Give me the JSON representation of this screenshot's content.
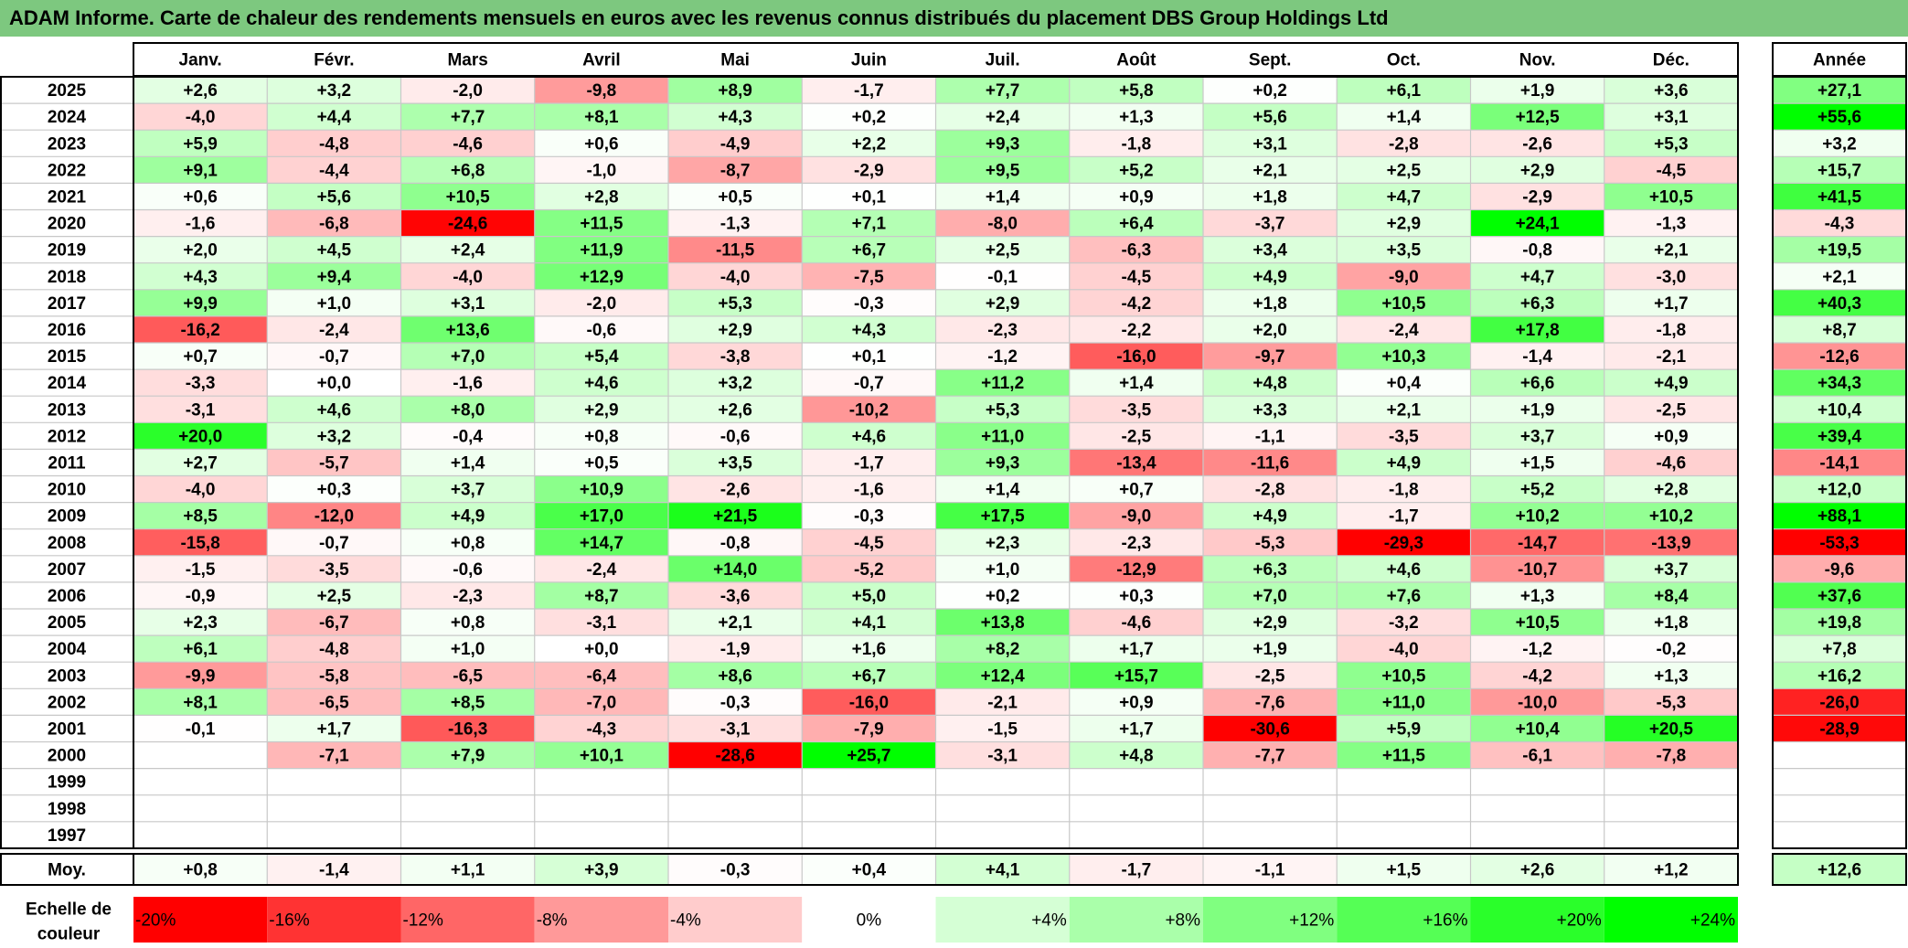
{
  "chart_data": {
    "type": "heatmap",
    "title": "ADAM Informe. Carte de chaleur des rendements mensuels en euros avec les revenus connus distribués du placement DBS Group Holdings Ltd",
    "months": [
      "Janv.",
      "Févr.",
      "Mars",
      "Avril",
      "Mai",
      "Juin",
      "Juil.",
      "Août",
      "Sept.",
      "Oct.",
      "Nov.",
      "Déc."
    ],
    "year_header": "Année",
    "years": [
      "2025",
      "2024",
      "2023",
      "2022",
      "2021",
      "2020",
      "2019",
      "2018",
      "2017",
      "2016",
      "2015",
      "2014",
      "2013",
      "2012",
      "2011",
      "2010",
      "2009",
      "2008",
      "2007",
      "2006",
      "2005",
      "2004",
      "2003",
      "2002",
      "2001",
      "2000",
      "1999",
      "1998",
      "1997"
    ],
    "values": [
      [
        "+2,6",
        "+3,2",
        "-2,0",
        "-9,8",
        "+8,9",
        "-1,7",
        "+7,7",
        "+5,8",
        "+0,2",
        "+6,1",
        "+1,9",
        "+3,6"
      ],
      [
        "-4,0",
        "+4,4",
        "+7,7",
        "+8,1",
        "+4,3",
        "+0,2",
        "+2,4",
        "+1,3",
        "+5,6",
        "+1,4",
        "+12,5",
        "+3,1"
      ],
      [
        "+5,9",
        "-4,8",
        "-4,6",
        "+0,6",
        "-4,9",
        "+2,2",
        "+9,3",
        "-1,8",
        "+3,1",
        "-2,8",
        "-2,6",
        "+5,3"
      ],
      [
        "+9,1",
        "-4,4",
        "+6,8",
        "-1,0",
        "-8,7",
        "-2,9",
        "+9,5",
        "+5,2",
        "+2,1",
        "+2,5",
        "+2,9",
        "-4,5"
      ],
      [
        "+0,6",
        "+5,6",
        "+10,5",
        "+2,8",
        "+0,5",
        "+0,1",
        "+1,4",
        "+0,9",
        "+1,8",
        "+4,7",
        "-2,9",
        "+10,5"
      ],
      [
        "-1,6",
        "-6,8",
        "-24,6",
        "+11,5",
        "-1,3",
        "+7,1",
        "-8,0",
        "+6,4",
        "-3,7",
        "+2,9",
        "+24,1",
        "-1,3"
      ],
      [
        "+2,0",
        "+4,5",
        "+2,4",
        "+11,9",
        "-11,5",
        "+6,7",
        "+2,5",
        "-6,3",
        "+3,4",
        "+3,5",
        "-0,8",
        "+2,1"
      ],
      [
        "+4,3",
        "+9,4",
        "-4,0",
        "+12,9",
        "-4,0",
        "-7,5",
        "-0,1",
        "-4,5",
        "+4,9",
        "-9,0",
        "+4,7",
        "-3,0"
      ],
      [
        "+9,9",
        "+1,0",
        "+3,1",
        "-2,0",
        "+5,3",
        "-0,3",
        "+2,9",
        "-4,2",
        "+1,8",
        "+10,5",
        "+6,3",
        "+1,7"
      ],
      [
        "-16,2",
        "-2,4",
        "+13,6",
        "-0,6",
        "+2,9",
        "+4,3",
        "-2,3",
        "-2,2",
        "+2,0",
        "-2,4",
        "+17,8",
        "-1,8"
      ],
      [
        "+0,7",
        "-0,7",
        "+7,0",
        "+5,4",
        "-3,8",
        "+0,1",
        "-1,2",
        "-16,0",
        "-9,7",
        "+10,3",
        "-1,4",
        "-2,1"
      ],
      [
        "-3,3",
        "+0,0",
        "-1,6",
        "+4,6",
        "+3,2",
        "-0,7",
        "+11,2",
        "+1,4",
        "+4,8",
        "+0,4",
        "+6,6",
        "+4,9"
      ],
      [
        "-3,1",
        "+4,6",
        "+8,0",
        "+2,9",
        "+2,6",
        "-10,2",
        "+5,3",
        "-3,5",
        "+3,3",
        "+2,1",
        "+1,9",
        "-2,5"
      ],
      [
        "+20,0",
        "+3,2",
        "-0,4",
        "+0,8",
        "-0,6",
        "+4,6",
        "+11,0",
        "-2,5",
        "-1,1",
        "-3,5",
        "+3,7",
        "+0,9"
      ],
      [
        "+2,7",
        "-5,7",
        "+1,4",
        "+0,5",
        "+3,5",
        "-1,7",
        "+9,3",
        "-13,4",
        "-11,6",
        "+4,9",
        "+1,5",
        "-4,6"
      ],
      [
        "-4,0",
        "+0,3",
        "+3,7",
        "+10,9",
        "-2,6",
        "-1,6",
        "+1,4",
        "+0,7",
        "-2,8",
        "-1,8",
        "+5,2",
        "+2,8"
      ],
      [
        "+8,5",
        "-12,0",
        "+4,9",
        "+17,0",
        "+21,5",
        "-0,3",
        "+17,5",
        "-9,0",
        "+4,9",
        "-1,7",
        "+10,2",
        "+10,2"
      ],
      [
        "-15,8",
        "-0,7",
        "+0,8",
        "+14,7",
        "-0,8",
        "-4,5",
        "+2,3",
        "-2,3",
        "-5,3",
        "-29,3",
        "-14,7",
        "-13,9"
      ],
      [
        "-1,5",
        "-3,5",
        "-0,6",
        "-2,4",
        "+14,0",
        "-5,2",
        "+1,0",
        "-12,9",
        "+6,3",
        "+4,6",
        "-10,7",
        "+3,7"
      ],
      [
        "-0,9",
        "+2,5",
        "-2,3",
        "+8,7",
        "-3,6",
        "+5,0",
        "+0,2",
        "+0,3",
        "+7,0",
        "+7,6",
        "+1,3",
        "+8,4"
      ],
      [
        "+2,3",
        "-6,7",
        "+0,8",
        "-3,1",
        "+2,1",
        "+4,1",
        "+13,8",
        "-4,6",
        "+2,9",
        "-3,2",
        "+10,5",
        "+1,8"
      ],
      [
        "+6,1",
        "-4,8",
        "+1,0",
        "+0,0",
        "-1,9",
        "+1,6",
        "+8,2",
        "+1,7",
        "+1,9",
        "-4,0",
        "-1,2",
        "-0,2"
      ],
      [
        "-9,9",
        "-5,8",
        "-6,5",
        "-6,4",
        "+8,6",
        "+6,7",
        "+12,4",
        "+15,7",
        "-2,5",
        "+10,5",
        "-4,2",
        "+1,3"
      ],
      [
        "+8,1",
        "-6,5",
        "+8,5",
        "-7,0",
        "-0,3",
        "-16,0",
        "-2,1",
        "+0,9",
        "-7,6",
        "+11,0",
        "-10,0",
        "-5,3"
      ],
      [
        "-0,1",
        "+1,7",
        "-16,3",
        "-4,3",
        "-3,1",
        "-7,9",
        "-1,5",
        "+1,7",
        "-30,6",
        "+5,9",
        "+10,4",
        "+20,5"
      ],
      [
        "",
        "-7,1",
        "+7,9",
        "+10,1",
        "-28,6",
        "+25,7",
        "-3,1",
        "+4,8",
        "-7,7",
        "+11,5",
        "-6,1",
        "-7,8"
      ],
      [
        "",
        "",
        "",
        "",
        "",
        "",
        "",
        "",
        "",
        "",
        "",
        ""
      ],
      [
        "",
        "",
        "",
        "",
        "",
        "",
        "",
        "",
        "",
        "",
        "",
        ""
      ],
      [
        "",
        "",
        "",
        "",
        "",
        "",
        "",
        "",
        "",
        "",
        "",
        ""
      ]
    ],
    "annual": [
      "+27,1",
      "+55,6",
      "+3,2",
      "+15,7",
      "+41,5",
      "-4,3",
      "+19,5",
      "+2,1",
      "+40,3",
      "+8,7",
      "-12,6",
      "+34,3",
      "+10,4",
      "+39,4",
      "-14,1",
      "+12,0",
      "+88,1",
      "-53,3",
      "-9,6",
      "+37,6",
      "+19,8",
      "+7,8",
      "+16,2",
      "-26,0",
      "-28,9",
      "",
      "",
      "",
      ""
    ],
    "average_label": "Moy.",
    "averages": [
      "+0,8",
      "-1,4",
      "+1,1",
      "+3,9",
      "-0,3",
      "+0,4",
      "+4,1",
      "-1,7",
      "-1,1",
      "+1,5",
      "+2,6",
      "+1,2"
    ],
    "average_annual": "+12,6",
    "scale_label_line1": "Echelle de",
    "scale_label_line2": "couleur",
    "scale": [
      "-20%",
      "-16%",
      "-12%",
      "-8%",
      "-4%",
      "0%",
      "+4%",
      "+8%",
      "+12%",
      "+16%",
      "+20%",
      "+24%"
    ],
    "colors": {
      "title_bg": "#7dc87f",
      "neg_strong": "#ff0000",
      "pos_strong": "#00ff00",
      "neutral": "#ffffff"
    }
  }
}
